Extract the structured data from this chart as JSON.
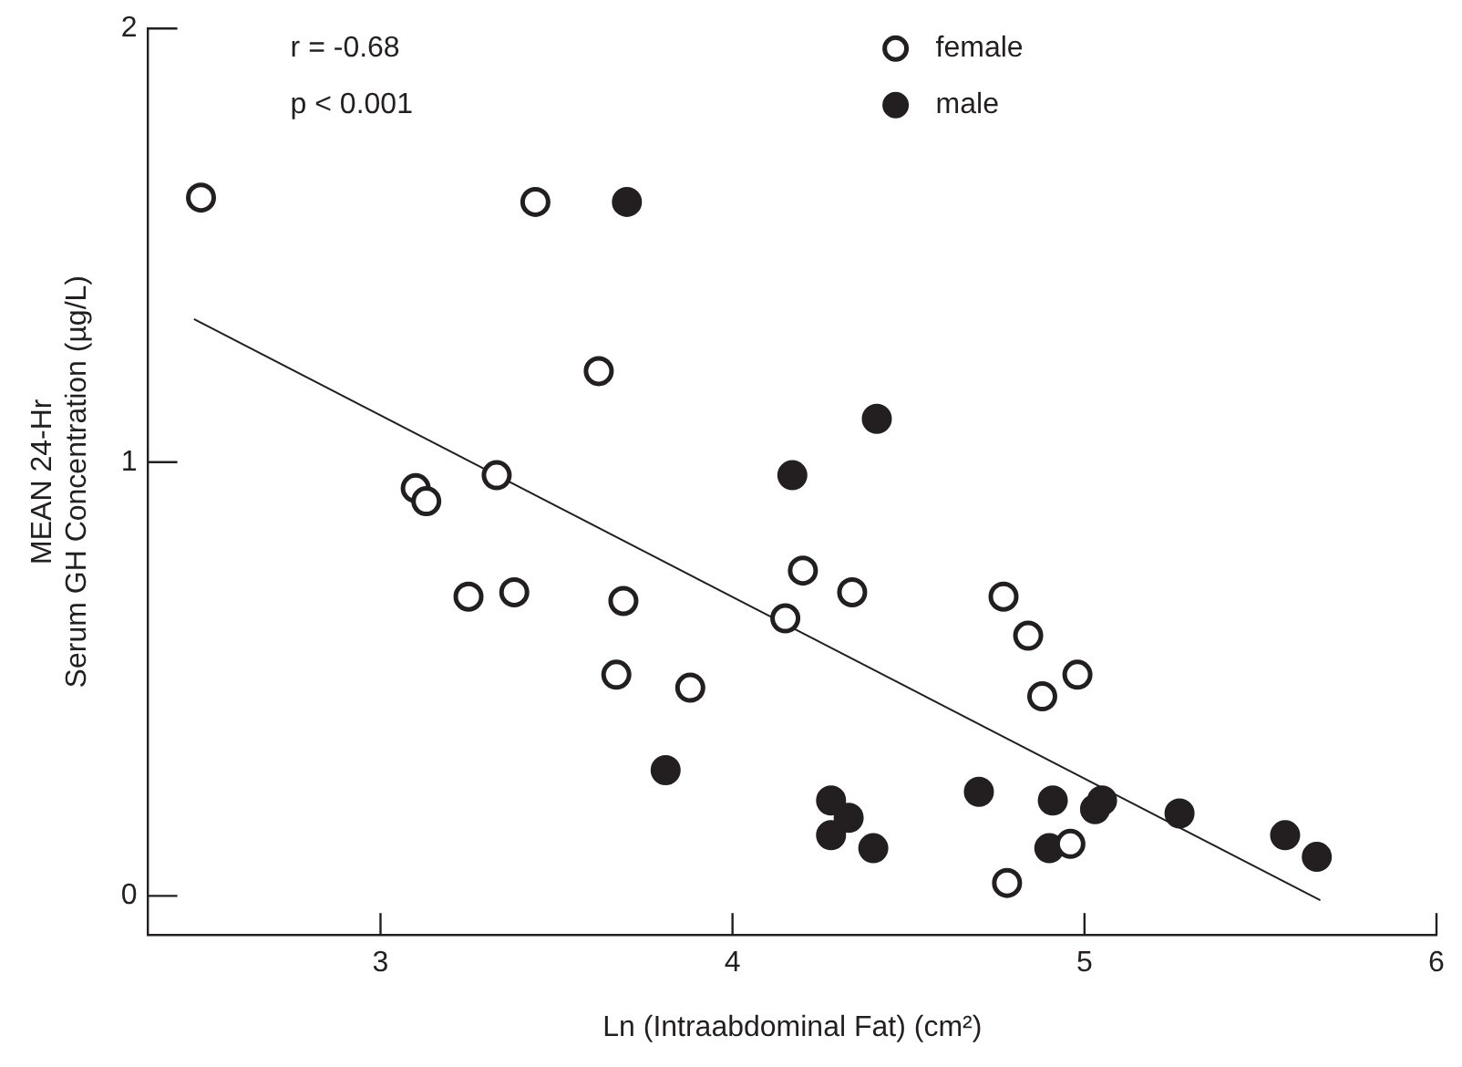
{
  "chart_data": {
    "type": "scatter",
    "xlabel": "Ln (Intraabdominal Fat) (cm²)",
    "ylabel": "MEAN 24-Hr\nSerum GH Concentration (µg/L)",
    "annotations": [
      "r = -0.68",
      "p < 0.001"
    ],
    "xlim": [
      2.34,
      6
    ],
    "xticks": [
      3,
      4,
      5,
      6
    ],
    "ylim": [
      -0.09,
      2
    ],
    "yticks": [
      0,
      1,
      2
    ],
    "grid": false,
    "legend": "top right",
    "marker": "circle",
    "series": [
      {
        "name": "female",
        "color": "#231f20",
        "x": [
          2.49,
          3.44,
          3.62,
          3.1,
          3.13,
          3.33,
          3.25,
          3.38,
          3.69,
          3.67,
          3.88,
          4.15,
          4.2,
          4.34,
          4.77,
          4.84,
          4.98,
          4.88,
          4.96,
          4.78
        ],
        "values": [
          1.61,
          1.6,
          1.21,
          0.94,
          0.91,
          0.97,
          0.69,
          0.7,
          0.68,
          0.51,
          0.48,
          0.64,
          0.75,
          0.7,
          0.69,
          0.6,
          0.51,
          0.46,
          0.12,
          0.03
        ]
      },
      {
        "name": "male",
        "color": "#231f20",
        "x": [
          3.7,
          4.17,
          4.41,
          3.81,
          4.28,
          4.33,
          4.28,
          4.4,
          4.7,
          4.91,
          5.05,
          5.03,
          4.9,
          5.27,
          5.57,
          5.66
        ],
        "values": [
          1.6,
          0.97,
          1.1,
          0.29,
          0.22,
          0.18,
          0.14,
          0.11,
          0.24,
          0.22,
          0.22,
          0.2,
          0.11,
          0.19,
          0.14,
          0.09
        ]
      },
      {
        "type": "line",
        "color": "#231f20",
        "marker": "none",
        "line_style": "solid",
        "x": [
          2.47,
          5.67
        ],
        "values": [
          1.33,
          -0.01
        ]
      }
    ]
  }
}
